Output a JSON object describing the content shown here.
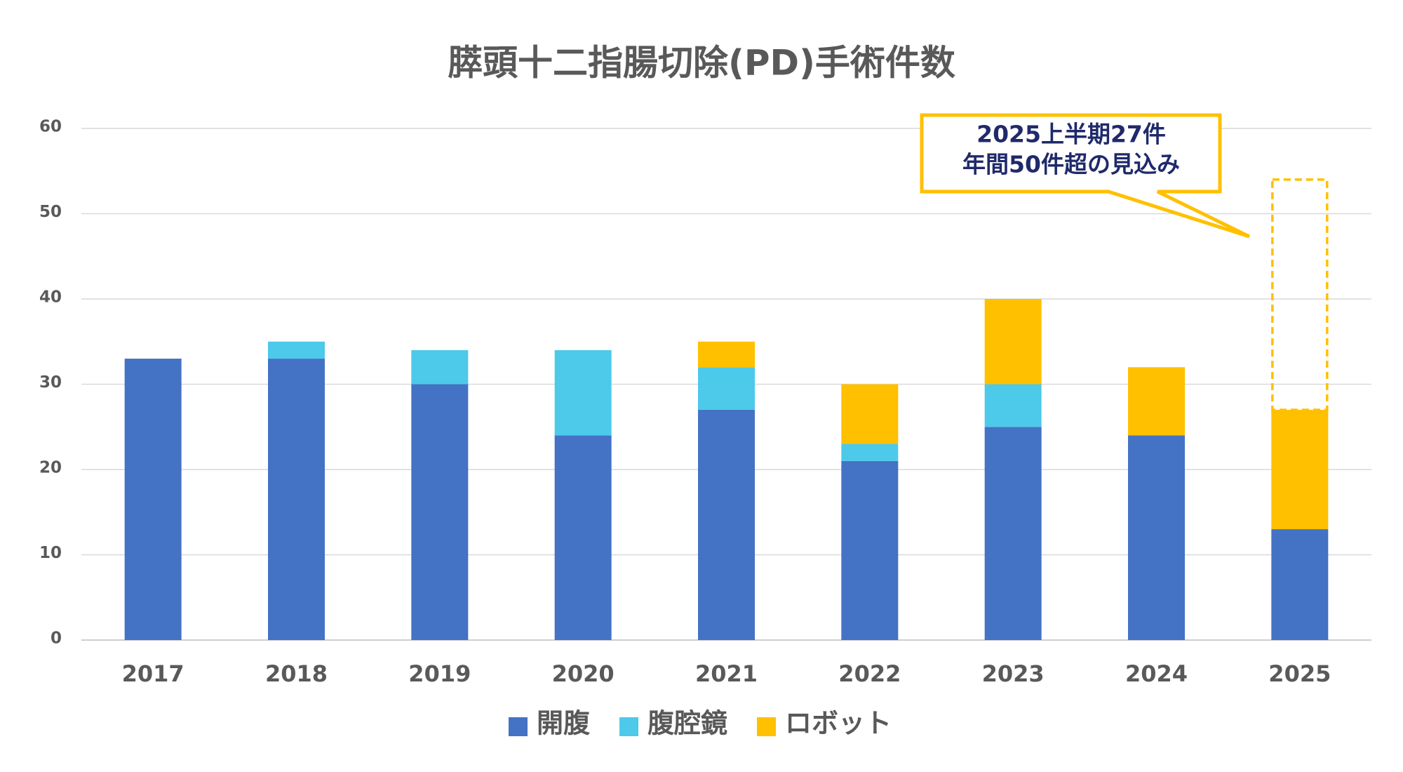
{
  "chart_data": {
    "type": "stacked_bar",
    "title": "膵頭十二指腸切除(PD)手術件数",
    "categories": [
      "2017",
      "2018",
      "2019",
      "2020",
      "2021",
      "2022",
      "2023",
      "2024",
      "2025"
    ],
    "series": [
      {
        "name": "開腹",
        "color": "#4472c4",
        "values": [
          33,
          33,
          30,
          24,
          27,
          21,
          25,
          24,
          13
        ]
      },
      {
        "name": "腹腔鏡",
        "color": "#4dc9ea",
        "values": [
          0,
          2,
          4,
          10,
          5,
          2,
          5,
          0,
          0
        ]
      },
      {
        "name": "ロボット",
        "color": "#ffc000",
        "values": [
          0,
          0,
          0,
          0,
          3,
          7,
          10,
          8,
          14
        ]
      }
    ],
    "projected_total": 54,
    "annotation": [
      "2025上半期27件",
      "年間50件超の見込み"
    ],
    "ylim": [
      0,
      60
    ],
    "yticks": [
      0,
      10,
      20,
      30,
      40,
      50,
      60
    ],
    "grid": true,
    "legend": "bottom"
  }
}
